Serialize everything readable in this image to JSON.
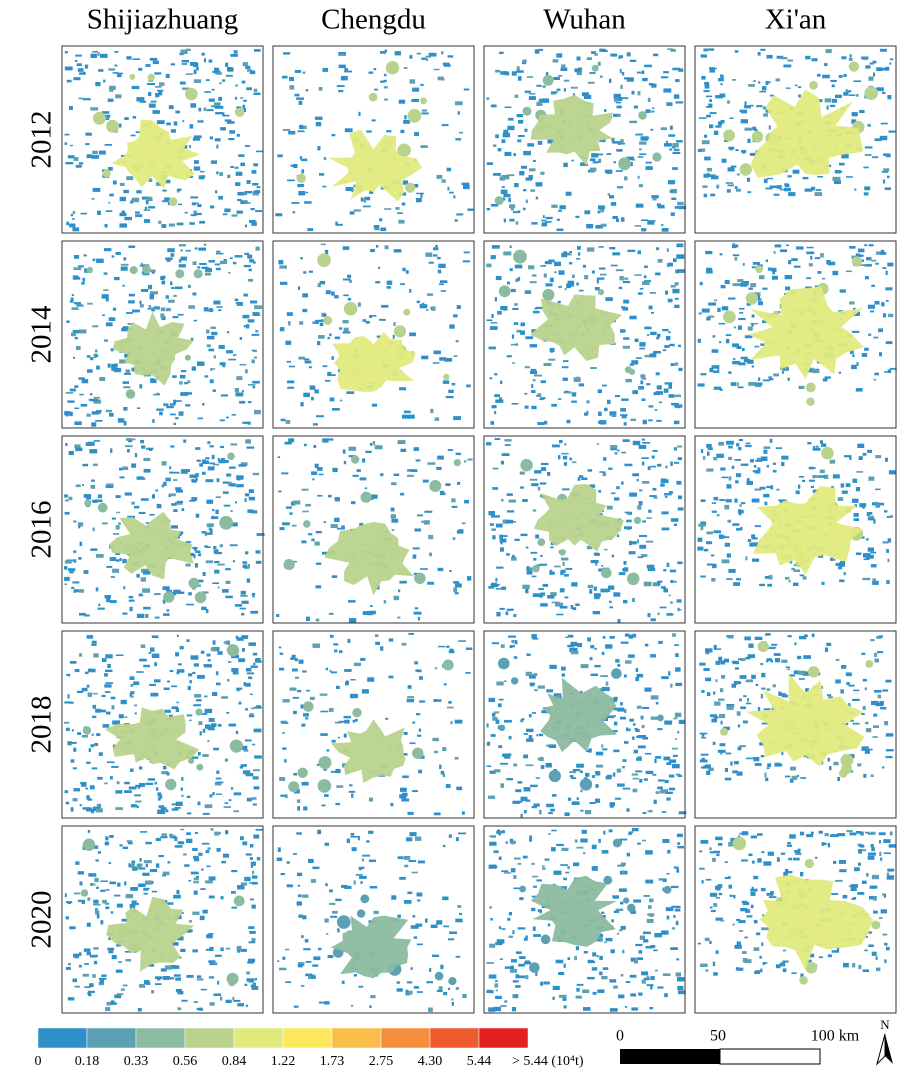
{
  "columns": [
    "Shijiazhuang",
    "Chengdu",
    "Wuhan",
    "Xi'an"
  ],
  "rows": [
    "2012",
    "2014",
    "2016",
    "2018",
    "2020"
  ],
  "legend": {
    "labels": [
      "0",
      "0.18",
      "0.33",
      "0.56",
      "0.84",
      "1.22",
      "1.73",
      "2.75",
      "4.30",
      "5.44",
      "> 5.44 (10⁴t)"
    ],
    "colors": [
      "#2e8fc9",
      "#5d9fb3",
      "#8bbba0",
      "#b9d38c",
      "#e0ea7d",
      "#fbe85c",
      "#f9bd4a",
      "#f68e3c",
      "#ee5b2f",
      "#e3211f"
    ]
  },
  "scale_bar": {
    "labels": [
      "0",
      "50",
      "100 km"
    ]
  },
  "north_arrow": {
    "label": "N"
  }
}
